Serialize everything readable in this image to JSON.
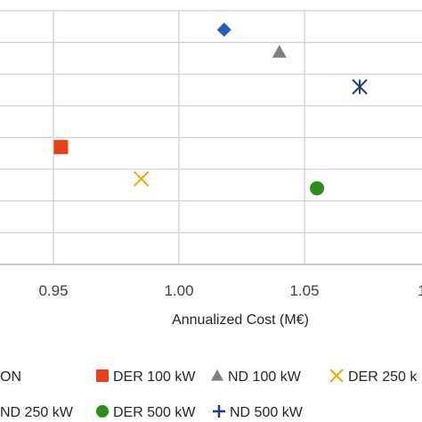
{
  "chart_data": {
    "type": "scatter",
    "xlabel": "Annualized Cost (M€)",
    "ylabel": "",
    "x_ticks": [
      "0.95",
      "1.00",
      "1.05",
      "1"
    ],
    "xlim": [
      0.9,
      1.1
    ],
    "ylim": [
      0,
      8
    ],
    "grid": true,
    "legend_position": "bottom",
    "series": [
      {
        "name": "DER 100 kW",
        "marker": "square",
        "color": "#e8401c",
        "x": [
          0.953
        ],
        "y": [
          3.7
        ]
      },
      {
        "name": "ND 100 kW",
        "marker": "triangle",
        "color": "#7f7f7f",
        "x": [
          1.04
        ],
        "y": [
          6.7
        ]
      },
      {
        "name": "DER 250 k",
        "marker": "x",
        "color": "#f0a800",
        "x": [
          0.985
        ],
        "y": [
          2.7
        ]
      },
      {
        "name": "DER 500 kW",
        "marker": "circle",
        "color": "#2e8b1e",
        "x": [
          1.055
        ],
        "y": [
          2.4
        ]
      },
      {
        "name": "ND 500 kW",
        "marker": "star",
        "color": "#1f3c88",
        "x": [
          1.072
        ],
        "y": [
          5.6
        ]
      },
      {
        "name": "",
        "marker": "diamond",
        "color": "#1f5fbf",
        "x": [
          1.018
        ],
        "y": [
          7.4
        ]
      }
    ],
    "legend_partial": {
      "row1_prefix": "ON",
      "row2_prefix": "ND 250 kW"
    }
  }
}
